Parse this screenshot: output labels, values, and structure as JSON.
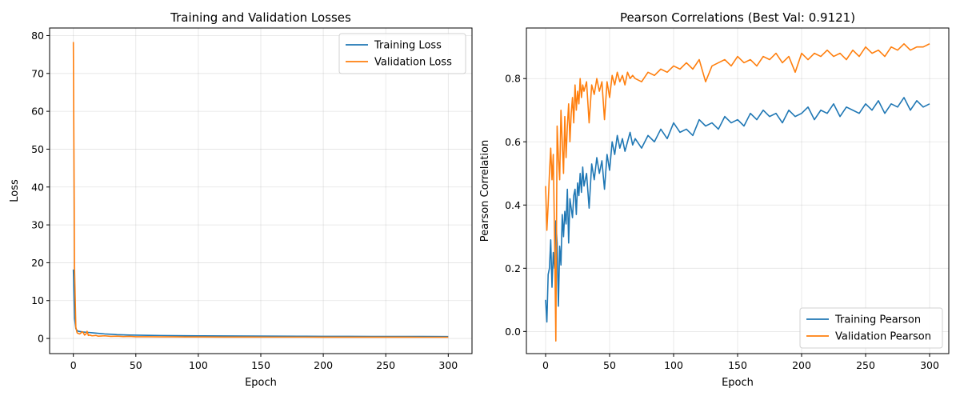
{
  "chart_data": [
    {
      "type": "line",
      "title": "Training and Validation Losses",
      "xlabel": "Epoch",
      "ylabel": "Loss",
      "xlim": [
        -19,
        319
      ],
      "ylim": [
        -4,
        82
      ],
      "xticks": [
        0,
        50,
        100,
        150,
        200,
        250,
        300
      ],
      "yticks": [
        0,
        10,
        20,
        30,
        40,
        50,
        60,
        70,
        80
      ],
      "grid": true,
      "legend_position": "upper-right",
      "series": [
        {
          "name": "Training Loss",
          "color": "#1f77b4",
          "x": [
            0,
            1,
            2,
            3,
            4,
            5,
            6,
            7,
            8,
            10,
            12,
            15,
            20,
            25,
            30,
            35,
            40,
            45,
            50,
            60,
            70,
            80,
            90,
            100,
            120,
            140,
            160,
            180,
            200,
            220,
            240,
            260,
            280,
            300
          ],
          "y": [
            18.2,
            5.2,
            2.6,
            2.1,
            1.9,
            1.85,
            1.8,
            1.75,
            1.7,
            1.65,
            1.6,
            1.5,
            1.35,
            1.2,
            1.1,
            1.0,
            0.95,
            0.9,
            0.88,
            0.82,
            0.78,
            0.75,
            0.72,
            0.7,
            0.66,
            0.63,
            0.61,
            0.59,
            0.57,
            0.55,
            0.54,
            0.53,
            0.52,
            0.51
          ]
        },
        {
          "name": "Validation Loss",
          "color": "#ff7f0e",
          "x": [
            0,
            1,
            2,
            3,
            4,
            5,
            6,
            7,
            8,
            9,
            10,
            11,
            12,
            13,
            15,
            18,
            20,
            25,
            30,
            35,
            40,
            45,
            50,
            60,
            70,
            80,
            90,
            100,
            120,
            140,
            160,
            180,
            200,
            220,
            240,
            260,
            280,
            300
          ],
          "y": [
            78.3,
            18.0,
            3.0,
            1.5,
            1.3,
            1.2,
            1.4,
            1.8,
            1.5,
            0.9,
            1.1,
            1.9,
            0.8,
            0.9,
            0.7,
            0.8,
            0.6,
            0.7,
            0.55,
            0.6,
            0.5,
            0.55,
            0.45,
            0.45,
            0.42,
            0.42,
            0.4,
            0.4,
            0.38,
            0.37,
            0.36,
            0.36,
            0.35,
            0.35,
            0.34,
            0.34,
            0.33,
            0.33
          ]
        }
      ]
    },
    {
      "type": "line",
      "title": "Pearson Correlations (Best Val: 0.9121)",
      "xlabel": "Epoch",
      "ylabel": "Pearson Correlation",
      "xlim": [
        -15,
        315
      ],
      "ylim": [
        -0.07,
        0.96
      ],
      "xticks": [
        0,
        50,
        100,
        150,
        200,
        250,
        300
      ],
      "yticks": [
        0.0,
        0.2,
        0.4,
        0.6,
        0.8
      ],
      "grid": true,
      "legend_position": "lower-right",
      "series": [
        {
          "name": "Training Pearson",
          "color": "#1f77b4",
          "x": [
            0,
            1,
            2,
            3,
            4,
            5,
            6,
            7,
            8,
            9,
            10,
            11,
            12,
            13,
            14,
            15,
            16,
            17,
            18,
            19,
            20,
            21,
            22,
            23,
            24,
            25,
            26,
            27,
            28,
            29,
            30,
            32,
            34,
            36,
            38,
            40,
            42,
            44,
            46,
            48,
            50,
            52,
            54,
            56,
            58,
            60,
            62,
            64,
            66,
            68,
            70,
            75,
            80,
            85,
            90,
            95,
            100,
            105,
            110,
            115,
            120,
            125,
            130,
            135,
            140,
            145,
            150,
            155,
            160,
            165,
            170,
            175,
            180,
            185,
            190,
            195,
            200,
            205,
            210,
            215,
            220,
            225,
            230,
            235,
            240,
            245,
            250,
            255,
            260,
            265,
            270,
            275,
            280,
            285,
            290,
            295,
            300
          ],
          "y": [
            0.1,
            0.03,
            0.18,
            0.2,
            0.29,
            0.14,
            0.25,
            0.2,
            0.35,
            0.28,
            0.08,
            0.27,
            0.21,
            0.37,
            0.3,
            0.38,
            0.34,
            0.45,
            0.28,
            0.42,
            0.39,
            0.36,
            0.43,
            0.45,
            0.37,
            0.47,
            0.43,
            0.5,
            0.44,
            0.52,
            0.46,
            0.5,
            0.39,
            0.53,
            0.48,
            0.55,
            0.5,
            0.54,
            0.45,
            0.56,
            0.51,
            0.6,
            0.56,
            0.62,
            0.58,
            0.61,
            0.57,
            0.6,
            0.63,
            0.59,
            0.61,
            0.58,
            0.62,
            0.6,
            0.64,
            0.61,
            0.66,
            0.63,
            0.64,
            0.62,
            0.67,
            0.65,
            0.66,
            0.64,
            0.68,
            0.66,
            0.67,
            0.65,
            0.69,
            0.67,
            0.7,
            0.68,
            0.69,
            0.66,
            0.7,
            0.68,
            0.69,
            0.71,
            0.67,
            0.7,
            0.69,
            0.72,
            0.68,
            0.71,
            0.7,
            0.69,
            0.72,
            0.7,
            0.73,
            0.69,
            0.72,
            0.71,
            0.74,
            0.7,
            0.73,
            0.71,
            0.72
          ]
        },
        {
          "name": "Validation Pearson",
          "color": "#ff7f0e",
          "x": [
            0,
            1,
            2,
            3,
            4,
            5,
            6,
            7,
            8,
            9,
            10,
            11,
            12,
            13,
            14,
            15,
            16,
            17,
            18,
            19,
            20,
            21,
            22,
            23,
            24,
            25,
            26,
            27,
            28,
            29,
            30,
            32,
            34,
            36,
            38,
            40,
            42,
            44,
            46,
            48,
            50,
            52,
            54,
            56,
            58,
            60,
            62,
            64,
            66,
            68,
            70,
            75,
            80,
            85,
            90,
            95,
            100,
            105,
            110,
            115,
            120,
            125,
            130,
            135,
            140,
            145,
            150,
            155,
            160,
            165,
            170,
            175,
            180,
            185,
            190,
            195,
            200,
            205,
            210,
            215,
            220,
            225,
            230,
            235,
            240,
            245,
            250,
            255,
            260,
            265,
            270,
            275,
            280,
            285,
            290,
            295,
            300
          ],
          "y": [
            0.46,
            0.32,
            0.4,
            0.5,
            0.58,
            0.48,
            0.56,
            0.3,
            -0.03,
            0.65,
            0.55,
            0.48,
            0.7,
            0.6,
            0.5,
            0.68,
            0.55,
            0.65,
            0.72,
            0.6,
            0.69,
            0.74,
            0.66,
            0.78,
            0.7,
            0.76,
            0.72,
            0.8,
            0.74,
            0.78,
            0.76,
            0.79,
            0.66,
            0.78,
            0.75,
            0.8,
            0.76,
            0.79,
            0.67,
            0.79,
            0.74,
            0.81,
            0.78,
            0.82,
            0.79,
            0.81,
            0.78,
            0.82,
            0.8,
            0.81,
            0.8,
            0.79,
            0.82,
            0.81,
            0.83,
            0.82,
            0.84,
            0.83,
            0.85,
            0.83,
            0.86,
            0.79,
            0.84,
            0.85,
            0.86,
            0.84,
            0.87,
            0.85,
            0.86,
            0.84,
            0.87,
            0.86,
            0.88,
            0.85,
            0.87,
            0.82,
            0.88,
            0.86,
            0.88,
            0.87,
            0.89,
            0.87,
            0.88,
            0.86,
            0.89,
            0.87,
            0.9,
            0.88,
            0.89,
            0.87,
            0.9,
            0.89,
            0.91,
            0.89,
            0.9,
            0.9,
            0.91
          ]
        }
      ]
    }
  ]
}
